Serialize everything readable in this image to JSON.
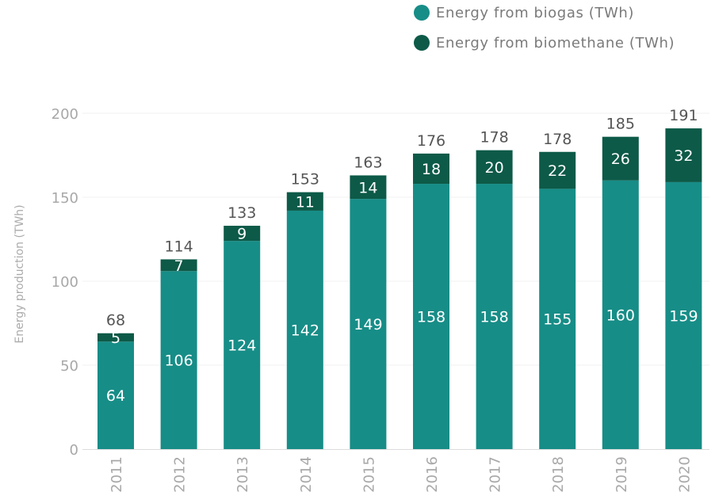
{
  "chart_data": {
    "type": "bar",
    "stacked": true,
    "categories": [
      "2011",
      "2012",
      "2013",
      "2014",
      "2015",
      "2016",
      "2017",
      "2018",
      "2019",
      "2020"
    ],
    "series": [
      {
        "name": "Energy from biogas (TWh)",
        "color": "#178d87",
        "values": [
          64,
          106,
          124,
          142,
          149,
          158,
          158,
          155,
          160,
          159
        ]
      },
      {
        "name": "Energy from biomethane (TWh)",
        "color": "#0d5a48",
        "values": [
          5,
          7,
          9,
          11,
          14,
          18,
          20,
          22,
          26,
          32
        ]
      }
    ],
    "totals": [
      68,
      114,
      133,
      153,
      163,
      176,
      178,
      178,
      185,
      191
    ],
    "ylabel": "Energy production (TWh)",
    "xlabel": "",
    "ylim": [
      0,
      200
    ],
    "yticks": [
      0,
      50,
      100,
      150,
      200
    ],
    "grid": true,
    "legend_position": "top-right"
  }
}
